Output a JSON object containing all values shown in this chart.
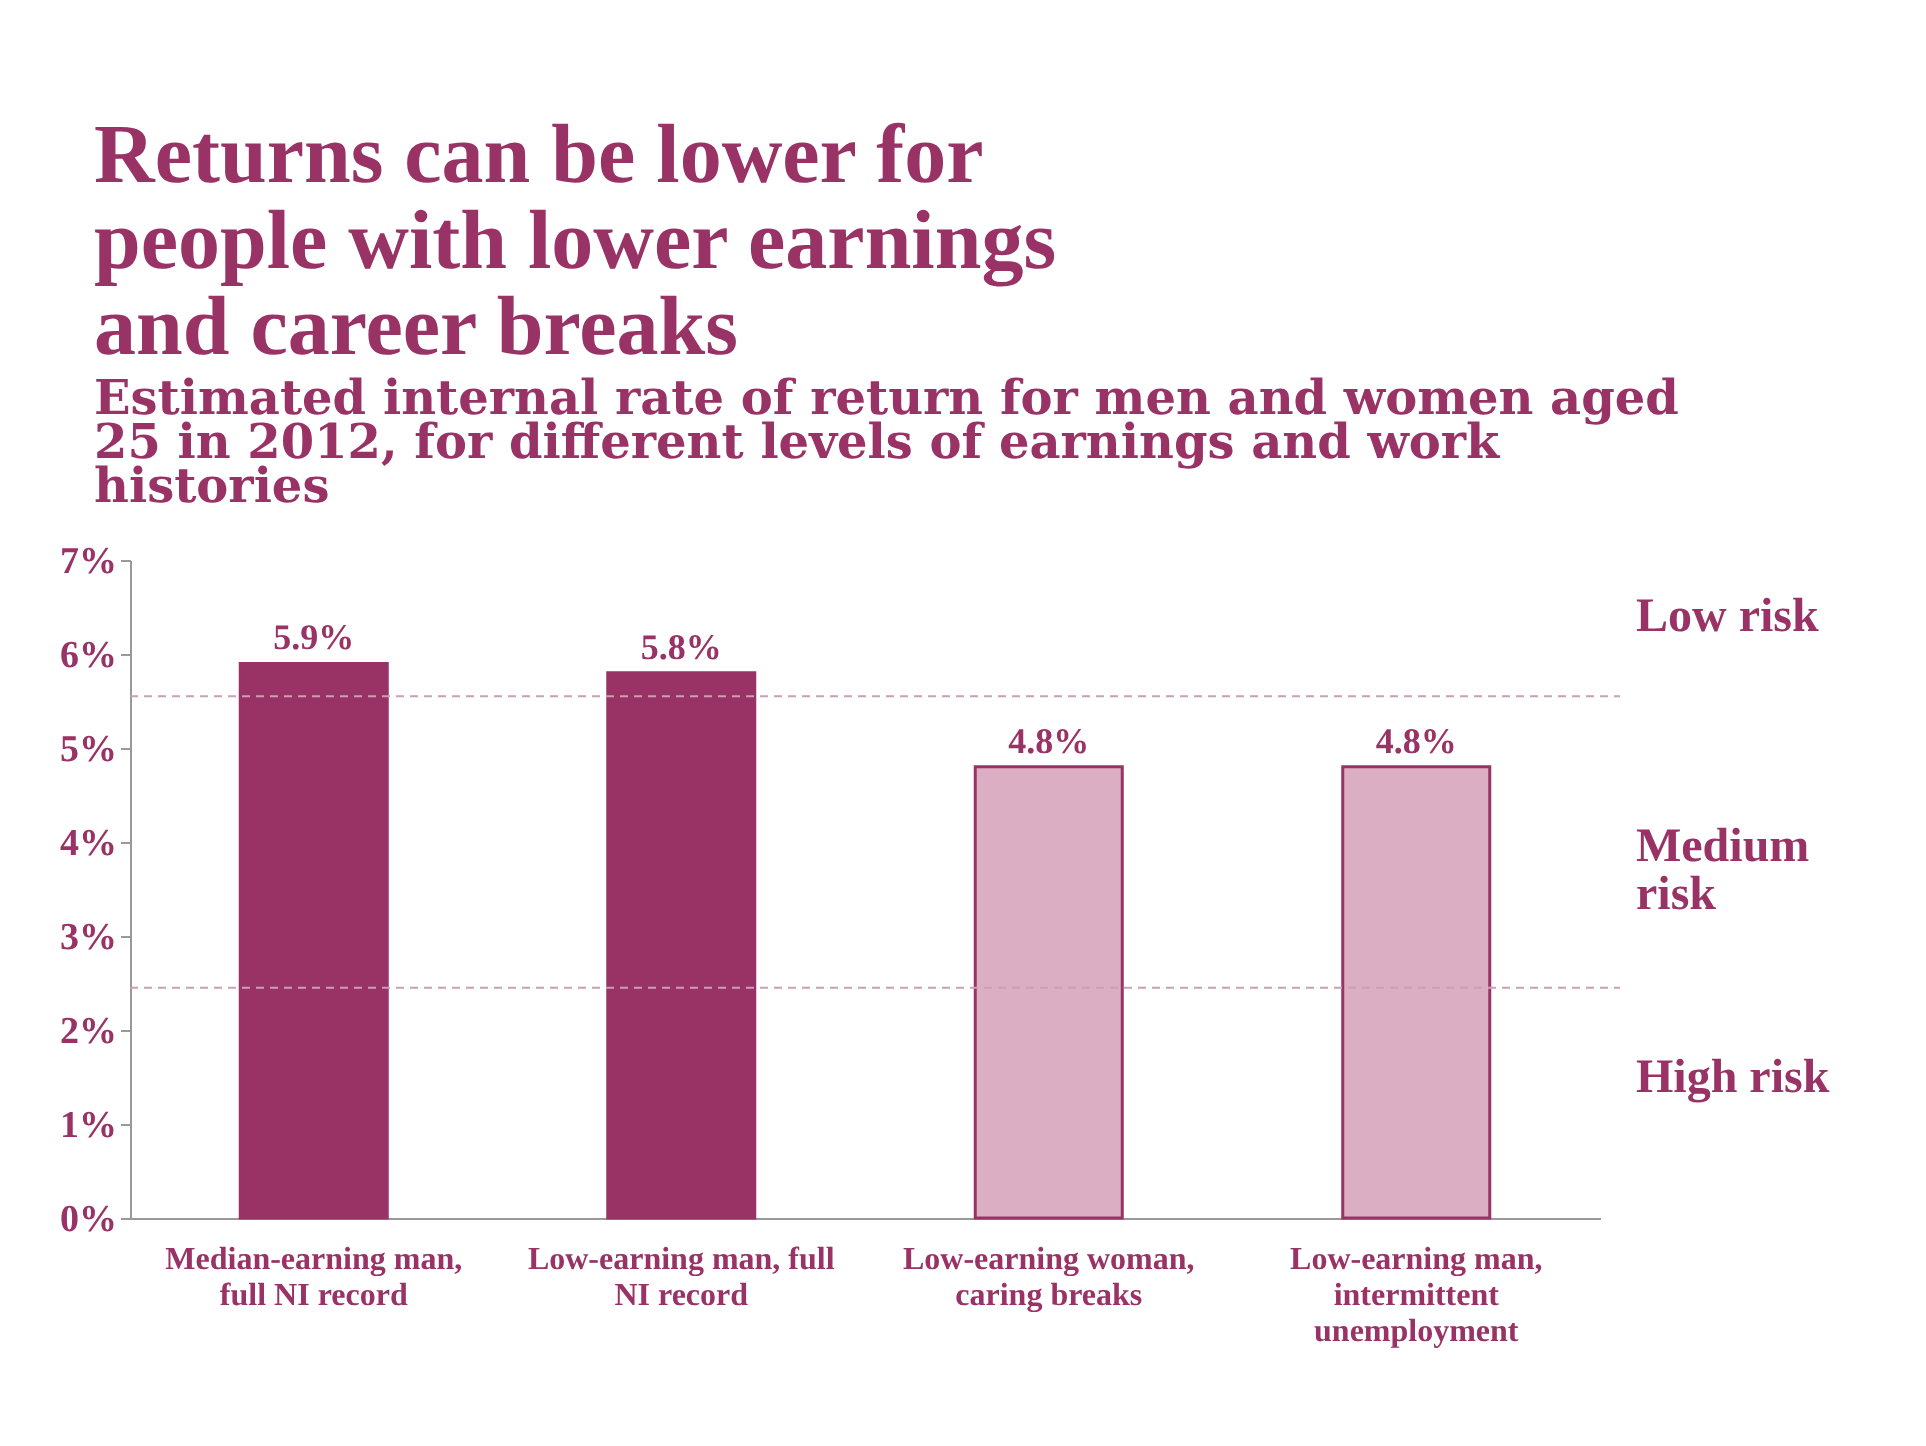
{
  "chart_data": {
    "type": "bar",
    "title": "Returns can be lower for people with lower earnings and career breaks",
    "subtitle": "Estimated internal rate of return for men and women aged 25 in 2012, for different levels of earnings and work histories",
    "categories": [
      "Median-earning man, full NI record",
      "Low-earning man, full NI record",
      "Low-earning woman, caring breaks",
      "Low-earning man, intermittent unemployment"
    ],
    "values": [
      5.9,
      5.8,
      4.8,
      4.8
    ],
    "colors": [
      "#993366",
      "#993366",
      "#dcaec4",
      "#dcaec4"
    ],
    "value_labels": [
      "5.9%",
      "5.8%",
      "4.8%",
      "4.8%"
    ],
    "ylim": [
      0,
      7
    ],
    "yticks": [
      {
        "value": 0,
        "label": "0%"
      },
      {
        "value": 1,
        "label": "1%"
      },
      {
        "value": 2,
        "label": "2%"
      },
      {
        "value": 3,
        "label": "3%"
      },
      {
        "value": 4,
        "label": "4%"
      },
      {
        "value": 5,
        "label": "5%"
      },
      {
        "value": 6,
        "label": "6%"
      },
      {
        "value": 7,
        "label": "7%"
      }
    ],
    "ref_lines": [
      {
        "axis": "y",
        "value": 5.55,
        "line_style": "dashed",
        "color": "#c9a0b4"
      },
      {
        "axis": "y",
        "value": 2.45,
        "line_style": "dashed",
        "color": "#c9a0b4"
      }
    ],
    "annotations": [
      "Low risk",
      "Medium risk",
      "High risk"
    ],
    "grid": false
  }
}
